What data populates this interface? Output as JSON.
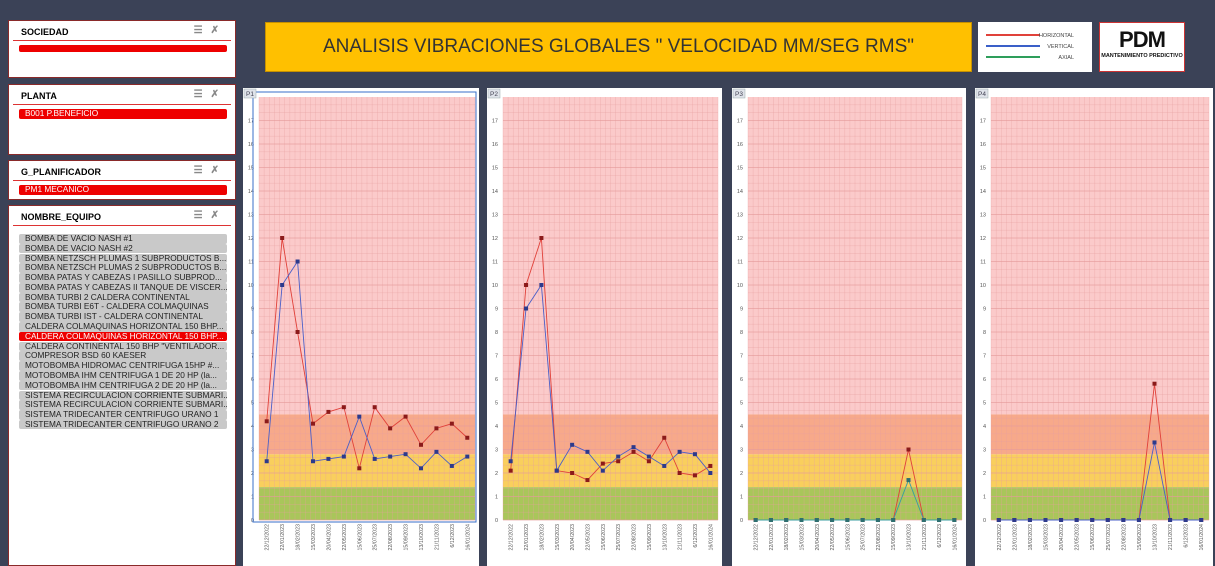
{
  "slicers": [
    {
      "title": "SOCIEDAD",
      "items": [],
      "selected_index": null
    },
    {
      "title": "PLANTA",
      "items": [
        "B001 P.BENEFICIO"
      ],
      "selected_index": 0
    },
    {
      "title": "G_PLANIFICADOR",
      "items": [
        "PM1 MECANICO"
      ],
      "selected_index": 0
    },
    {
      "title": "NOMBRE_EQUIPO",
      "items": [
        "BOMBA DE VACIO NASH #1",
        "BOMBA DE VACIO NASH #2",
        "BOMBA NETZSCH PLUMAS 1 SUBPRODUCTOS B...",
        "BOMBA NETZSCH PLUMAS 2 SUBPRODUCTOS B...",
        "BOMBA PATAS Y CABEZAS I PASILLO SUBPROD...",
        "BOMBA PATAS Y CABEZAS II TANQUE DE VISCER...",
        "BOMBA TURBI 2 CALDERA CONTINENTAL",
        "BOMBA TURBI E6T - CALDERA COLMAQUINAS",
        "BOMBA TURBI IST - CALDERA CONTINENTAL",
        "CALDERA COLMAQUINAS HORIZONTAL 150 BHP...",
        "CALDERA COLMAQUINAS HORIZONTAL 150 BHP...",
        "CALDERA CONTINENTAL 150 BHP \"VENTILADOR...",
        "COMPRESOR BSD 60 KAESER",
        "MOTOBOMBA HIDROMAC CENTRIFUGA 15HP #...",
        "MOTOBOMBA IHM CENTRIFUGA 1 DE 20 HP (la...",
        "MOTOBOMBA IHM CENTRIFUGA 2 DE 20 HP (la...",
        "SISTEMA RECIRCULACION CORRIENTE SUBMARI...",
        "SISTEMA RECIRCULACION CORRIENTE SUBMARI...",
        "SISTEMA TRIDECANTER CENTRIFUGO URANO 1",
        "SISTEMA TRIDECANTER CENTRIFUGO URANO 2"
      ],
      "selected_index": 10
    }
  ],
  "title": "ANALISIS VIBRACIONES GLOBALES \" VELOCIDAD MM/SEG RMS\"",
  "legend": [
    {
      "label": "HORIZONTAL",
      "color": "#e0413a"
    },
    {
      "label": "VERTICAL",
      "color": "#3a5fc8"
    },
    {
      "label": "AXIAL",
      "color": "#2e9e5b"
    }
  ],
  "logo": {
    "name": "PDM",
    "tagline": "MANTENIMIENTO PREDICTIVO"
  },
  "chart_data": [
    {
      "type": "line",
      "title": "P1",
      "categories": [
        "22/12/2022",
        "22/01/2023",
        "18/02/2023",
        "15/03/2023",
        "20/04/2023",
        "22/05/2023",
        "15/06/2023",
        "25/07/2023",
        "22/08/2023",
        "15/09/2023",
        "13/10/2023",
        "21/11/2023",
        "6/12/2023",
        "16/01/2024"
      ],
      "series": [
        {
          "name": "HORIZONTAL",
          "color": "#e0413a",
          "marker_color": "#8b1a1a",
          "values": [
            4.2,
            12,
            8,
            4.1,
            4.6,
            4.8,
            2.2,
            4.8,
            3.9,
            4.4,
            3.2,
            3.9,
            4.1,
            3.5
          ]
        },
        {
          "name": "VERTICAL",
          "color": "#4a5fc8",
          "marker_color": "#2d3a8c",
          "values": [
            2.5,
            10,
            11,
            2.5,
            2.6,
            2.7,
            4.4,
            2.6,
            2.7,
            2.8,
            2.2,
            2.9,
            2.3,
            2.7
          ]
        }
      ],
      "ylim": [
        0,
        18
      ],
      "yticks": [
        0,
        1,
        2,
        3,
        4,
        5,
        6,
        7,
        8,
        9,
        10,
        11,
        12,
        13,
        14,
        15,
        16,
        17
      ],
      "bands": [
        {
          "from": 0,
          "to": 1.4,
          "color": "#a9c65a"
        },
        {
          "from": 1.4,
          "to": 2.8,
          "color": "#f9cf5d"
        },
        {
          "from": 2.8,
          "to": 4.5,
          "color": "#f7a98a"
        },
        {
          "from": 4.5,
          "to": 18,
          "color": "#fbcaca"
        }
      ],
      "grid": true,
      "selected": true
    },
    {
      "type": "line",
      "title": "P2",
      "categories": [
        "22/12/2022",
        "22/01/2023",
        "18/02/2023",
        "15/03/2023",
        "20/04/2023",
        "22/05/2023",
        "15/06/2023",
        "25/07/2023",
        "22/08/2023",
        "15/09/2023",
        "13/10/2023",
        "21/11/2023",
        "6/12/2023",
        "16/01/2024"
      ],
      "series": [
        {
          "name": "HORIZONTAL",
          "color": "#e0413a",
          "marker_color": "#8b1a1a",
          "values": [
            2.1,
            10,
            12,
            2.1,
            2.0,
            1.7,
            2.4,
            2.5,
            2.9,
            2.5,
            3.5,
            2.0,
            1.9,
            2.3
          ]
        },
        {
          "name": "VERTICAL",
          "color": "#4a5fc8",
          "marker_color": "#2d3a8c",
          "values": [
            2.5,
            9,
            10,
            2.1,
            3.2,
            2.9,
            2.1,
            2.7,
            3.1,
            2.7,
            2.3,
            2.9,
            2.8,
            2.0
          ]
        }
      ],
      "ylim": [
        0,
        18
      ],
      "yticks": [
        0,
        1,
        2,
        3,
        4,
        5,
        6,
        7,
        8,
        9,
        10,
        11,
        12,
        13,
        14,
        15,
        16,
        17
      ],
      "bands": [
        {
          "from": 0,
          "to": 1.4,
          "color": "#a9c65a"
        },
        {
          "from": 1.4,
          "to": 2.8,
          "color": "#f9cf5d"
        },
        {
          "from": 2.8,
          "to": 4.5,
          "color": "#f7a98a"
        },
        {
          "from": 4.5,
          "to": 18,
          "color": "#fbcaca"
        }
      ],
      "grid": true,
      "selected": false
    },
    {
      "type": "line",
      "title": "P3",
      "categories": [
        "22/12/2022",
        "22/01/2023",
        "18/02/2023",
        "15/03/2023",
        "20/04/2023",
        "22/05/2023",
        "15/06/2023",
        "25/07/2023",
        "22/08/2023",
        "15/09/2023",
        "13/10/2023",
        "21/11/2023",
        "6/12/2023",
        "16/01/2024"
      ],
      "series": [
        {
          "name": "HORIZONTAL",
          "color": "#e0413a",
          "marker_color": "#8b1a1a",
          "values": [
            0,
            0,
            0,
            0,
            0,
            0,
            0,
            0,
            0,
            0,
            3.0,
            0,
            0,
            0
          ]
        },
        {
          "name": "VERTICAL",
          "color": "#3a9ea0",
          "marker_color": "#2d6f70",
          "values": [
            0,
            0,
            0,
            0,
            0,
            0,
            0,
            0,
            0,
            0,
            1.7,
            0,
            0,
            0
          ]
        }
      ],
      "ylim": [
        0,
        18
      ],
      "yticks": [
        0,
        1,
        2,
        3,
        4,
        5,
        6,
        7,
        8,
        9,
        10,
        11,
        12,
        13,
        14,
        15,
        16,
        17
      ],
      "bands": [
        {
          "from": 0,
          "to": 1.4,
          "color": "#a9c65a"
        },
        {
          "from": 1.4,
          "to": 2.8,
          "color": "#f9cf5d"
        },
        {
          "from": 2.8,
          "to": 4.5,
          "color": "#f7a98a"
        },
        {
          "from": 4.5,
          "to": 18,
          "color": "#fbcaca"
        }
      ],
      "grid": true,
      "selected": false
    },
    {
      "type": "line",
      "title": "P4",
      "categories": [
        "22/12/2022",
        "22/01/2023",
        "18/02/2023",
        "15/03/2023",
        "20/04/2023",
        "22/05/2023",
        "15/06/2023",
        "25/07/2023",
        "22/08/2023",
        "15/09/2023",
        "13/10/2023",
        "21/11/2023",
        "6/12/2023",
        "16/01/2024"
      ],
      "series": [
        {
          "name": "HORIZONTAL",
          "color": "#e0413a",
          "marker_color": "#8b1a1a",
          "values": [
            0,
            0,
            0,
            0,
            0,
            0,
            0,
            0,
            0,
            0,
            5.8,
            0,
            0,
            0
          ]
        },
        {
          "name": "VERTICAL",
          "color": "#4a5fc8",
          "marker_color": "#2d3a8c",
          "values": [
            0,
            0,
            0,
            0,
            0,
            0,
            0,
            0,
            0,
            0,
            3.3,
            0,
            0,
            0
          ]
        }
      ],
      "ylim": [
        0,
        18
      ],
      "yticks": [
        0,
        1,
        2,
        3,
        4,
        5,
        6,
        7,
        8,
        9,
        10,
        11,
        12,
        13,
        14,
        15,
        16,
        17
      ],
      "bands": [
        {
          "from": 0,
          "to": 1.4,
          "color": "#a9c65a"
        },
        {
          "from": 1.4,
          "to": 2.8,
          "color": "#f9cf5d"
        },
        {
          "from": 2.8,
          "to": 4.5,
          "color": "#f7a98a"
        },
        {
          "from": 4.5,
          "to": 18,
          "color": "#fbcaca"
        }
      ],
      "grid": true,
      "selected": false
    }
  ]
}
